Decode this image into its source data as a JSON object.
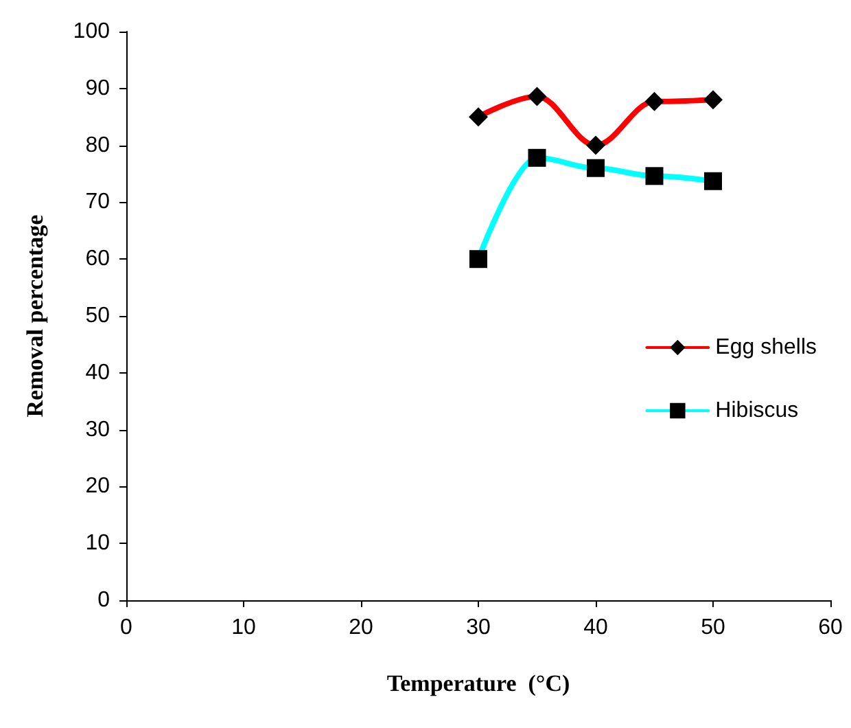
{
  "chart_data": {
    "type": "line",
    "xlabel": "Temperature  (°C)",
    "ylabel": "Removal percentage",
    "xlim": [
      0,
      60
    ],
    "xticks": [
      0,
      10,
      20,
      30,
      40,
      50,
      60
    ],
    "ylim": [
      0,
      100
    ],
    "yticks": [
      0,
      10,
      20,
      30,
      40,
      50,
      60,
      70,
      80,
      90,
      100
    ],
    "grid": false,
    "legend": "right",
    "line_style": "solid",
    "series": [
      {
        "name": "Egg shells",
        "color": "#ff0000",
        "marker": "diamond",
        "x": [
          30,
          35,
          40,
          45,
          50
        ],
        "values": [
          85,
          88.6,
          80,
          87.7,
          88
        ]
      },
      {
        "name": "Hibiscus",
        "color": "#00ffff",
        "marker": "square",
        "x": [
          30,
          35,
          40,
          45,
          50
        ],
        "values": [
          60,
          77.8,
          76,
          74.6,
          73.7
        ]
      }
    ]
  }
}
